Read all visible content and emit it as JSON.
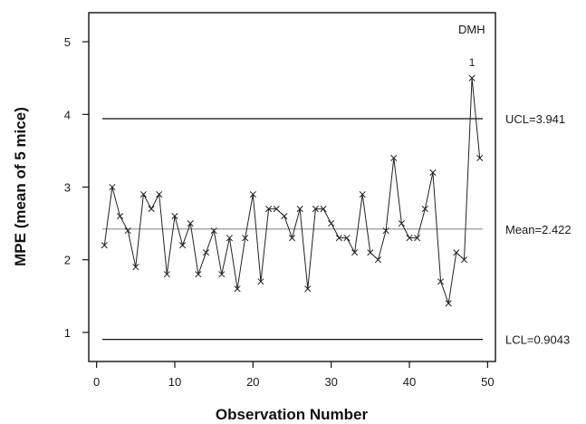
{
  "chart_data": {
    "type": "line",
    "title": "",
    "xlabel": "Observation Number",
    "ylabel": "MPE (mean of 5 mice)",
    "xlim": [
      -1,
      51
    ],
    "ylim": [
      0.6,
      5.4
    ],
    "xticks": [
      0,
      10,
      20,
      30,
      40,
      50
    ],
    "yticks": [
      1,
      2,
      3,
      4,
      5
    ],
    "grid": false,
    "panel_label": "DMH",
    "x": [
      1,
      2,
      3,
      4,
      5,
      6,
      7,
      8,
      9,
      10,
      11,
      12,
      13,
      14,
      15,
      16,
      17,
      18,
      19,
      20,
      21,
      22,
      23,
      24,
      25,
      26,
      27,
      28,
      29,
      30,
      31,
      32,
      33,
      34,
      35,
      36,
      37,
      38,
      39,
      40,
      41,
      42,
      43,
      44,
      45,
      46,
      47,
      48,
      49
    ],
    "series": [
      {
        "values": [
          2.2,
          3.0,
          2.6,
          2.4,
          1.9,
          2.9,
          2.7,
          2.9,
          1.8,
          2.6,
          2.2,
          2.5,
          1.8,
          2.1,
          2.4,
          1.8,
          2.3,
          1.6,
          2.3,
          2.9,
          1.7,
          2.7,
          2.7,
          2.6,
          2.3,
          2.7,
          1.6,
          2.7,
          2.7,
          2.5,
          2.3,
          2.3,
          2.1,
          2.9,
          2.1,
          2.0,
          2.4,
          3.4,
          2.5,
          2.3,
          2.3,
          2.7,
          3.2,
          1.7,
          1.4,
          2.1,
          2.0,
          4.5,
          3.4
        ],
        "color": "#222222",
        "marker": "x"
      }
    ],
    "reference_lines": [
      {
        "label": "UCL=3.941",
        "value": 3.941,
        "style": "solid"
      },
      {
        "label": "Mean=2.422",
        "value": 2.422,
        "style": "thin"
      },
      {
        "label": "LCL=0.9043",
        "value": 0.9043,
        "style": "solid"
      }
    ],
    "annotations": [
      {
        "text": "1",
        "x": 48,
        "y": 4.5
      }
    ]
  }
}
